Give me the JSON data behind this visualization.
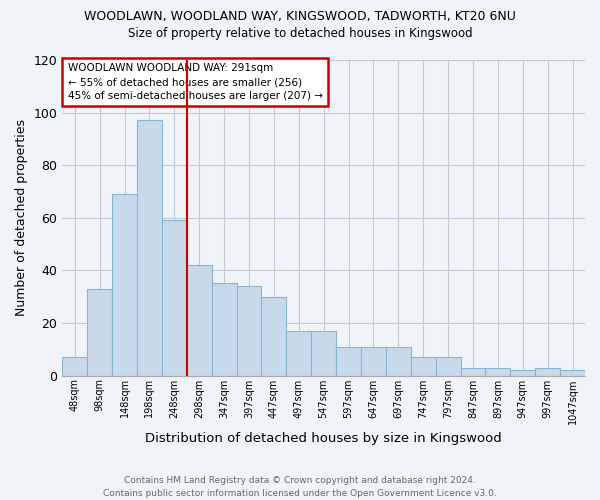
{
  "title": "WOODLAWN, WOODLAND WAY, KINGSWOOD, TADWORTH, KT20 6NU",
  "subtitle": "Size of property relative to detached houses in Kingswood",
  "xlabel": "Distribution of detached houses by size in Kingswood",
  "ylabel": "Number of detached properties",
  "footer_line1": "Contains HM Land Registry data © Crown copyright and database right 2024.",
  "footer_line2": "Contains public sector information licensed under the Open Government Licence v3.0.",
  "categories": [
    "48sqm",
    "98sqm",
    "148sqm",
    "198sqm",
    "248sqm",
    "298sqm",
    "347sqm",
    "397sqm",
    "447sqm",
    "497sqm",
    "547sqm",
    "597sqm",
    "647sqm",
    "697sqm",
    "747sqm",
    "797sqm",
    "847sqm",
    "897sqm",
    "947sqm",
    "997sqm",
    "1047sqm"
  ],
  "values": [
    7,
    33,
    69,
    97,
    59,
    42,
    35,
    34,
    30,
    17,
    17,
    11,
    11,
    11,
    7,
    7,
    3,
    3,
    2,
    3,
    2
  ],
  "bar_color": "#c8d9ea",
  "bar_edge_color": "#8ab4cf",
  "ylim": [
    0,
    120
  ],
  "yticks": [
    0,
    20,
    40,
    60,
    80,
    100,
    120
  ],
  "property_label": "WOODLAWN WOODLAND WAY: 291sqm",
  "annotation_line1": "← 55% of detached houses are smaller (256)",
  "annotation_line2": "45% of semi-detached houses are larger (207) →",
  "red_line_color": "#cc0000",
  "annotation_box_color": "#cc0000",
  "background_color": "#f0f4f8",
  "grid_color": "#c0ccd8"
}
